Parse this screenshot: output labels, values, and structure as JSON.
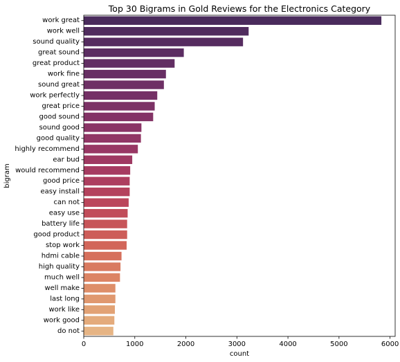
{
  "chart_data": {
    "type": "bar",
    "orientation": "horizontal",
    "title": "Top 30 Bigrams in Gold Reviews for the Electronics Category",
    "xlabel": "count",
    "ylabel": "bigram",
    "xlim": [
      0,
      6100
    ],
    "xticks": [
      0,
      1000,
      2000,
      3000,
      4000,
      5000,
      6000
    ],
    "grid": false,
    "legend": "none",
    "categories": [
      "work great",
      "work well",
      "sound quality",
      "great sound",
      "great product",
      "work fine",
      "sound great",
      "work perfectly",
      "great price",
      "good sound",
      "sound good",
      "good quality",
      "highly recommend",
      "ear bud",
      "would recommend",
      "good price",
      "easy install",
      "can not",
      "easy use",
      "battery life",
      "good product",
      "stop work",
      "hdmi cable",
      "high quality",
      "much well",
      "well make",
      "last long",
      "work like",
      "work good",
      "do not"
    ],
    "values": [
      5830,
      3230,
      3120,
      1960,
      1780,
      1610,
      1570,
      1440,
      1390,
      1360,
      1130,
      1120,
      1060,
      950,
      910,
      900,
      900,
      880,
      860,
      850,
      850,
      840,
      740,
      720,
      710,
      620,
      620,
      610,
      600,
      580
    ],
    "colors": [
      "#4a2b5c",
      "#502c5e",
      "#562c60",
      "#5c2d62",
      "#622e63",
      "#682f64",
      "#6e3065",
      "#753166",
      "#7c3266",
      "#833366",
      "#8a3466",
      "#913665",
      "#983764",
      "#9f3962",
      "#a63b61",
      "#ad3e5f",
      "#b4425d",
      "#bb465b",
      "#c14d5a",
      "#c75559",
      "#cd5d59",
      "#d2665a",
      "#d6705c",
      "#d97a60",
      "#dc8464",
      "#de8e69",
      "#e0986f",
      "#e2a275",
      "#e4ab7c",
      "#e6b484"
    ]
  }
}
